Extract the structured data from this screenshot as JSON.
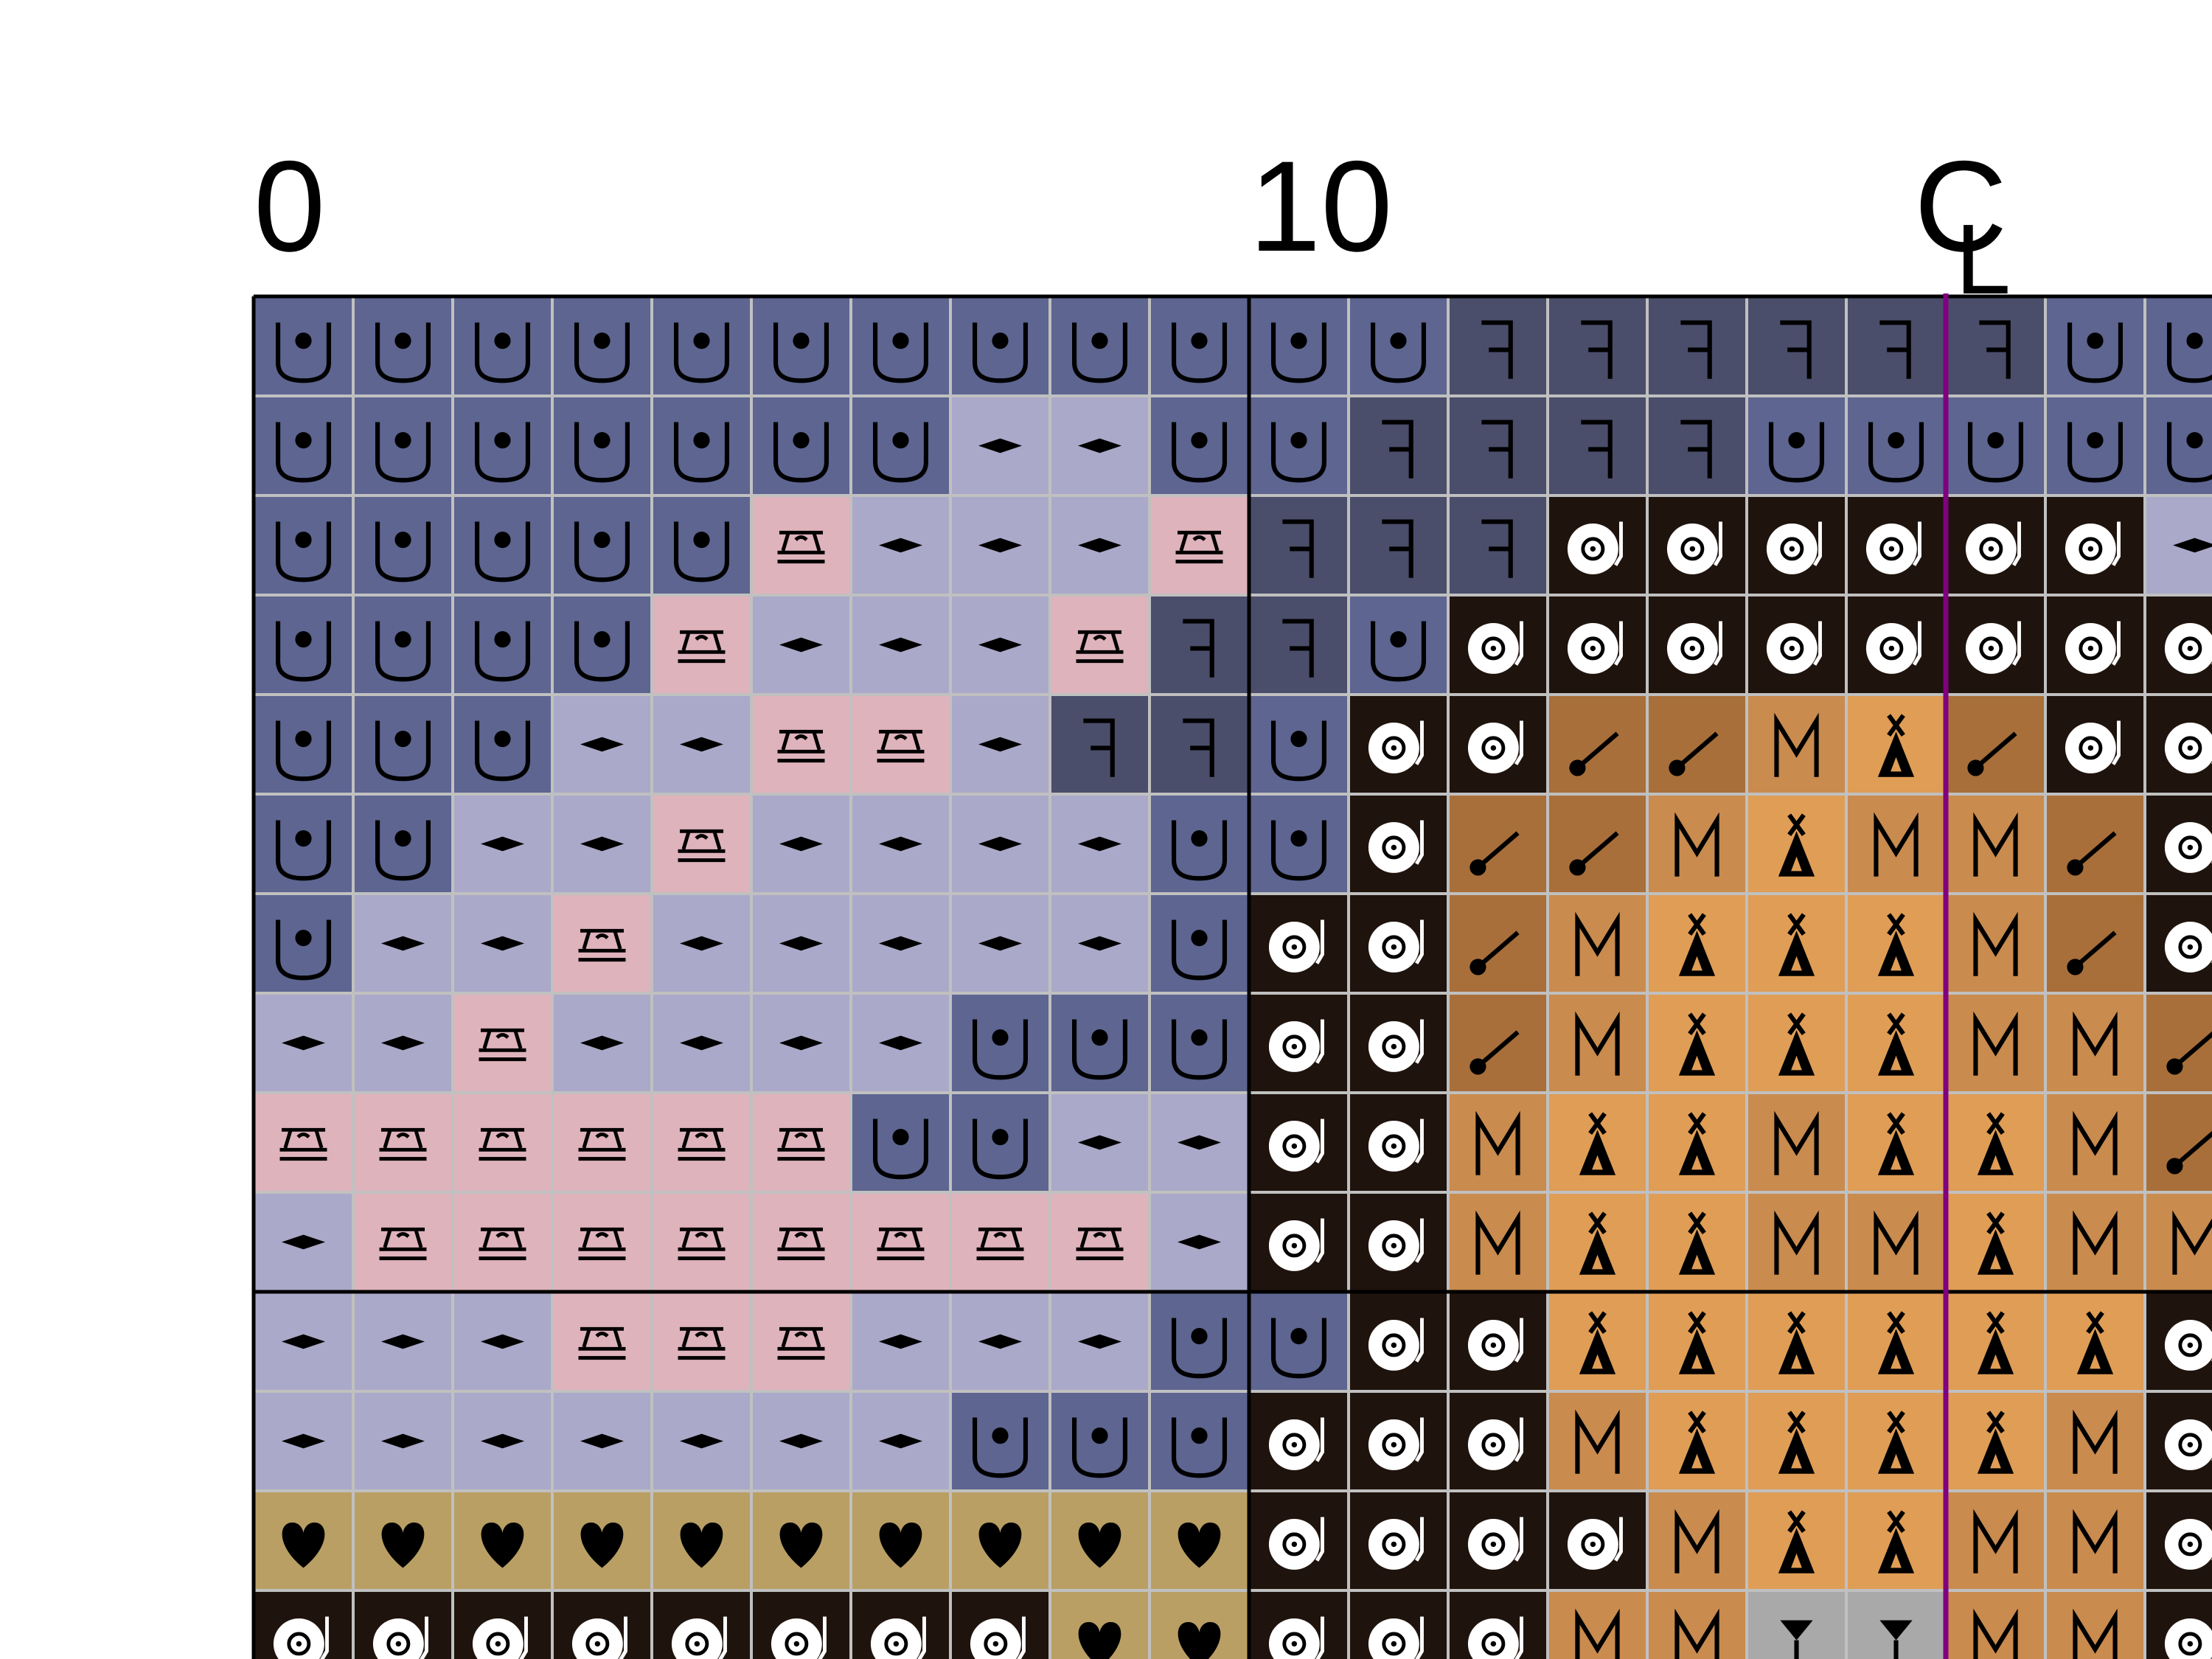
{
  "column_labels": [
    "0",
    "10"
  ],
  "center_mark": "C",
  "center_mark_sub": "L",
  "center_line_color": "#800080",
  "grid": {
    "rows": [
      [
        "#5d6590",
        "#5d6590",
        "#5d6590",
        "#5d6590",
        "#5d6590",
        "#5d6590",
        "#5d6590",
        "#5d6590",
        "#5d6590",
        "#5d6590",
        "#5d6590",
        "#5d6590",
        "#4a4e6a",
        "#4a4e6a",
        "#4a4e6a",
        "#4a4e6a",
        "#4a4e6a",
        "#4a4e6a",
        "#5d6590",
        "#5d6590"
      ],
      [
        "#5d6590",
        "#5d6590",
        "#5d6590",
        "#5d6590",
        "#5d6590",
        "#5d6590",
        "#5d6590",
        "#aba9c9",
        "#aba9c9",
        "#5d6590",
        "#5d6590",
        "#4a4e6a",
        "#4a4e6a",
        "#4a4e6a",
        "#4a4e6a",
        "#5d6590",
        "#5d6590",
        "#5d6590",
        "#5d6590",
        "#5d6590"
      ],
      [
        "#5d6590",
        "#5d6590",
        "#5d6590",
        "#5d6590",
        "#5d6590",
        "#dfb3bc",
        "#aba9c9",
        "#aba9c9",
        "#aba9c9",
        "#dfb3bc",
        "#4a4e6a",
        "#4a4e6a",
        "#4a4e6a",
        "#1f130d",
        "#1f130d",
        "#1f130d",
        "#1f130d",
        "#1f130d",
        "#1f130d",
        "#aba9c9"
      ],
      [
        "#5d6590",
        "#5d6590",
        "#5d6590",
        "#5d6590",
        "#dfb3bc",
        "#aba9c9",
        "#aba9c9",
        "#aba9c9",
        "#dfb3bc",
        "#4a4e6a",
        "#4a4e6a",
        "#5d6590",
        "#1f130d",
        "#1f130d",
        "#1f130d",
        "#1f130d",
        "#1f130d",
        "#1f130d",
        "#1f130d",
        "#1f130d"
      ],
      [
        "#5d6590",
        "#5d6590",
        "#5d6590",
        "#aba9c9",
        "#aba9c9",
        "#dfb3bc",
        "#dfb3bc",
        "#aba9c9",
        "#4a4e6a",
        "#4a4e6a",
        "#5d6590",
        "#1f130d",
        "#1f130d",
        "#a86f3a",
        "#a86f3a",
        "#c98b4e",
        "#df9d56",
        "#a86f3a",
        "#1f130d",
        "#1f130d"
      ],
      [
        "#5d6590",
        "#5d6590",
        "#aba9c9",
        "#aba9c9",
        "#dfb3bc",
        "#aba9c9",
        "#aba9c9",
        "#aba9c9",
        "#aba9c9",
        "#5d6590",
        "#5d6590",
        "#1f130d",
        "#a86f3a",
        "#a86f3a",
        "#c98b4e",
        "#df9d56",
        "#c98b4e",
        "#c98b4e",
        "#a86f3a",
        "#1f130d"
      ],
      [
        "#5d6590",
        "#aba9c9",
        "#aba9c9",
        "#dfb3bc",
        "#aba9c9",
        "#aba9c9",
        "#aba9c9",
        "#aba9c9",
        "#aba9c9",
        "#5d6590",
        "#1f130d",
        "#1f130d",
        "#a86f3a",
        "#c98b4e",
        "#df9d56",
        "#df9d56",
        "#df9d56",
        "#c98b4e",
        "#a86f3a",
        "#1f130d"
      ],
      [
        "#aba9c9",
        "#aba9c9",
        "#dfb3bc",
        "#aba9c9",
        "#aba9c9",
        "#aba9c9",
        "#aba9c9",
        "#5d6590",
        "#5d6590",
        "#5d6590",
        "#1f130d",
        "#1f130d",
        "#a86f3a",
        "#c98b4e",
        "#df9d56",
        "#df9d56",
        "#df9d56",
        "#c98b4e",
        "#c98b4e",
        "#a86f3a"
      ],
      [
        "#dfb3bc",
        "#dfb3bc",
        "#dfb3bc",
        "#dfb3bc",
        "#dfb3bc",
        "#dfb3bc",
        "#5d6590",
        "#5d6590",
        "#aba9c9",
        "#aba9c9",
        "#1f130d",
        "#1f130d",
        "#c98b4e",
        "#df9d56",
        "#df9d56",
        "#c98b4e",
        "#df9d56",
        "#df9d56",
        "#c98b4e",
        "#a86f3a"
      ],
      [
        "#aba9c9",
        "#dfb3bc",
        "#dfb3bc",
        "#dfb3bc",
        "#dfb3bc",
        "#dfb3bc",
        "#dfb3bc",
        "#dfb3bc",
        "#dfb3bc",
        "#aba9c9",
        "#1f130d",
        "#1f130d",
        "#c98b4e",
        "#df9d56",
        "#df9d56",
        "#c98b4e",
        "#c98b4e",
        "#df9d56",
        "#c98b4e",
        "#c98b4e"
      ],
      [
        "#aba9c9",
        "#aba9c9",
        "#aba9c9",
        "#dfb3bc",
        "#dfb3bc",
        "#dfb3bc",
        "#aba9c9",
        "#aba9c9",
        "#aba9c9",
        "#5d6590",
        "#5d6590",
        "#1f130d",
        "#1f130d",
        "#df9d56",
        "#df9d56",
        "#df9d56",
        "#df9d56",
        "#df9d56",
        "#df9d56",
        "#1f130d"
      ],
      [
        "#aba9c9",
        "#aba9c9",
        "#aba9c9",
        "#aba9c9",
        "#aba9c9",
        "#aba9c9",
        "#aba9c9",
        "#5d6590",
        "#5d6590",
        "#5d6590",
        "#1f130d",
        "#1f130d",
        "#1f130d",
        "#c98b4e",
        "#df9d56",
        "#df9d56",
        "#df9d56",
        "#df9d56",
        "#c98b4e",
        "#1f130d"
      ],
      [
        "#b99f64",
        "#b99f64",
        "#b99f64",
        "#b99f64",
        "#b99f64",
        "#b99f64",
        "#b99f64",
        "#b99f64",
        "#b99f64",
        "#b99f64",
        "#1f130d",
        "#1f130d",
        "#1f130d",
        "#1f130d",
        "#c98b4e",
        "#df9d56",
        "#df9d56",
        "#c98b4e",
        "#c98b4e",
        "#1f130d"
      ],
      [
        "#1f130d",
        "#1f130d",
        "#1f130d",
        "#1f130d",
        "#1f130d",
        "#1f130d",
        "#1f130d",
        "#1f130d",
        "#b99f64",
        "#b99f64",
        "#1f130d",
        "#1f130d",
        "#1f130d",
        "#c98b4e",
        "#c98b4e",
        "#a9a9a9",
        "#a9a9a9",
        "#c98b4e",
        "#c98b4e",
        "#1f130d"
      ]
    ]
  }
}
